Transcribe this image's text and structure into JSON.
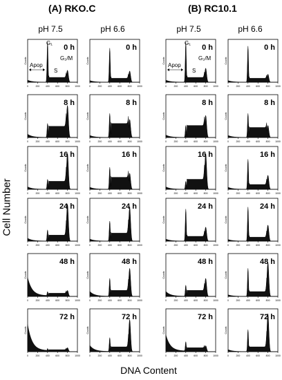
{
  "chart_data": {
    "type": "area",
    "groups": [
      {
        "label": "(A) RKO.C",
        "conditions": [
          "pH 7.5",
          "pH 6.6"
        ]
      },
      {
        "label": "(B) RC10.1",
        "conditions": [
          "pH 7.5",
          "pH 6.6"
        ]
      }
    ],
    "times": [
      "0 h",
      "8 h",
      "16 h",
      "24 h",
      "48 h",
      "72 h"
    ],
    "xlabel": "DNA Content",
    "ylabel": "Cell Number",
    "panel_ylabel": "Counts",
    "xlim": [
      0,
      1000
    ],
    "xticks": [
      "0",
      "200",
      "400",
      "600",
      "800",
      "1000"
    ],
    "annotations": {
      "G1": "G₁",
      "G2M": "G₂/M",
      "S": "S",
      "Apop": "Apop"
    },
    "series": [
      {
        "name": "RKO.C pH 7.5",
        "peaks": [
          {
            "apop": 0.05,
            "g1": 1.0,
            "s": 0.12,
            "g2": 0.3
          },
          {
            "apop": 0.08,
            "g1": 0.35,
            "s": 0.28,
            "g2": 0.8
          },
          {
            "apop": 0.06,
            "g1": 0.25,
            "s": 0.2,
            "g2": 0.9
          },
          {
            "apop": 0.07,
            "g1": 0.28,
            "s": 0.15,
            "g2": 0.92
          },
          {
            "apop": 0.45,
            "g1": 0.12,
            "s": 0.08,
            "g2": 0.15
          },
          {
            "apop": 0.65,
            "g1": 0.08,
            "s": 0.05,
            "g2": 0.1
          }
        ]
      },
      {
        "name": "RKO.C pH 6.6",
        "peaks": [
          {
            "apop": 0.04,
            "g1": 0.85,
            "s": 0.1,
            "g2": 0.28
          },
          {
            "apop": 0.05,
            "g1": 0.6,
            "s": 0.35,
            "g2": 0.45
          },
          {
            "apop": 0.05,
            "g1": 0.55,
            "s": 0.3,
            "g2": 0.4
          },
          {
            "apop": 0.05,
            "g1": 0.5,
            "s": 0.2,
            "g2": 0.85
          },
          {
            "apop": 0.12,
            "g1": 0.45,
            "s": 0.15,
            "g2": 0.7
          },
          {
            "apop": 0.15,
            "g1": 0.35,
            "s": 0.12,
            "g2": 0.8
          }
        ]
      },
      {
        "name": "RC10.1 pH 7.5",
        "peaks": [
          {
            "apop": 0.05,
            "g1": 1.0,
            "s": 0.12,
            "g2": 0.35
          },
          {
            "apop": 0.06,
            "g1": 0.3,
            "s": 0.3,
            "g2": 0.55
          },
          {
            "apop": 0.06,
            "g1": 0.2,
            "s": 0.25,
            "g2": 0.9
          },
          {
            "apop": 0.05,
            "g1": 0.8,
            "s": 0.12,
            "g2": 0.35
          },
          {
            "apop": 0.12,
            "g1": 0.28,
            "s": 0.15,
            "g2": 0.45
          },
          {
            "apop": 0.4,
            "g1": 0.25,
            "s": 0.1,
            "g2": 0.15
          }
        ]
      },
      {
        "name": "RC10.1 pH 6.6",
        "peaks": [
          {
            "apop": 0.04,
            "g1": 0.9,
            "s": 0.1,
            "g2": 0.2
          },
          {
            "apop": 0.05,
            "g1": 0.6,
            "s": 0.25,
            "g2": 0.3
          },
          {
            "apop": 0.05,
            "g1": 0.75,
            "s": 0.12,
            "g2": 0.35
          },
          {
            "apop": 0.04,
            "g1": 0.85,
            "s": 0.1,
            "g2": 0.4
          },
          {
            "apop": 0.04,
            "g1": 0.7,
            "s": 0.12,
            "g2": 0.85
          },
          {
            "apop": 0.05,
            "g1": 0.55,
            "s": 0.12,
            "g2": 0.95
          }
        ]
      }
    ]
  }
}
